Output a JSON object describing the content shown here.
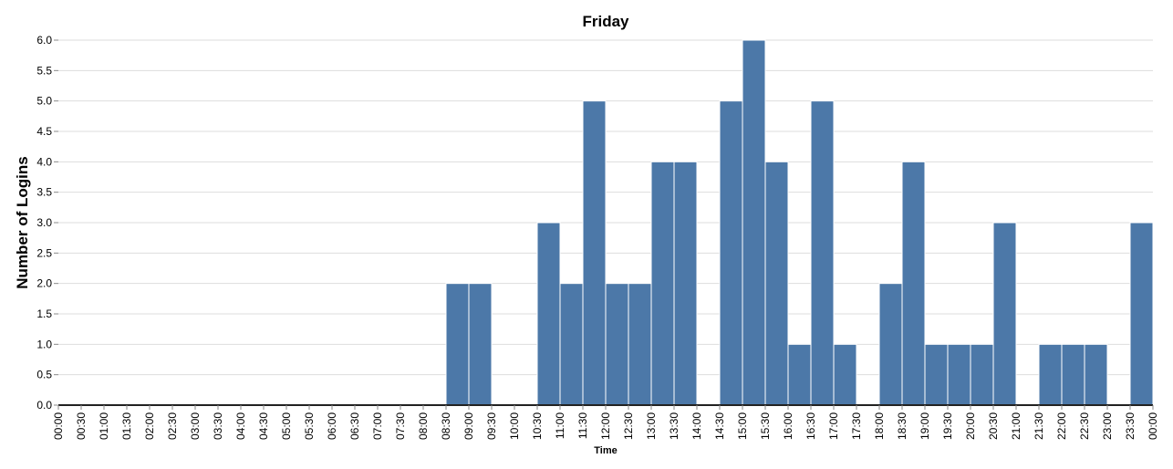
{
  "chart_data": {
    "type": "histogram",
    "title": "Friday",
    "x_label": "Time",
    "y_label": "Number of Logins",
    "bins": [
      "00:00",
      "00:30",
      "01:00",
      "01:30",
      "02:00",
      "02:30",
      "03:00",
      "03:30",
      "04:00",
      "04:30",
      "05:00",
      "05:30",
      "06:00",
      "06:30",
      "07:00",
      "07:30",
      "08:00",
      "08:30",
      "09:00",
      "09:30",
      "10:00",
      "10:30",
      "11:00",
      "11:30",
      "12:00",
      "12:30",
      "13:00",
      "13:30",
      "14:00",
      "14:30",
      "15:00",
      "15:30",
      "16:00",
      "16:30",
      "17:00",
      "17:30",
      "18:00",
      "18:30",
      "19:00",
      "19:30",
      "20:00",
      "20:30",
      "21:00",
      "21:30",
      "22:00",
      "22:30",
      "23:00",
      "23:30",
      "00:00"
    ],
    "values": [
      0,
      0,
      0,
      0,
      0,
      0,
      0,
      0,
      0,
      0,
      0,
      0,
      0,
      0,
      0,
      0,
      0,
      2,
      2,
      0,
      0,
      3,
      2,
      5,
      2,
      2,
      4,
      4,
      0,
      5,
      6,
      4,
      1,
      5,
      1,
      0,
      2,
      4,
      1,
      1,
      1,
      3,
      0,
      1,
      1,
      1,
      0,
      3
    ],
    "color": "#4c78a8",
    "ylim": [
      0,
      6
    ],
    "yticks": [
      {
        "value": 0,
        "label": "0.0"
      },
      {
        "value": 0.5,
        "label": "0.5"
      },
      {
        "value": 1,
        "label": "1.0"
      },
      {
        "value": 1.5,
        "label": "1.5"
      },
      {
        "value": 2,
        "label": "2.0"
      },
      {
        "value": 2.5,
        "label": "2.5"
      },
      {
        "value": 3,
        "label": "3.0"
      },
      {
        "value": 3.5,
        "label": "3.5"
      },
      {
        "value": 4,
        "label": "4.0"
      },
      {
        "value": 4.5,
        "label": "4.5"
      },
      {
        "value": 5,
        "label": "5.0"
      },
      {
        "value": 5.5,
        "label": "5.5"
      },
      {
        "value": 6,
        "label": "6.0"
      }
    ],
    "grid": true
  }
}
